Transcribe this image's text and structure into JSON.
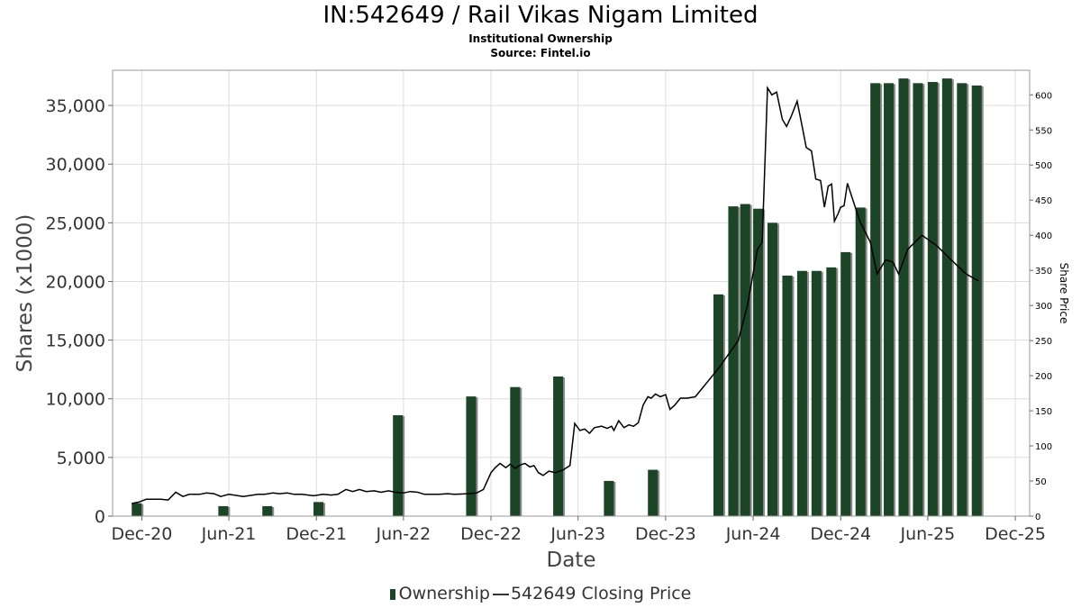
{
  "header": {
    "title": "IN:542649 / Rail Vikas Nigam Limited",
    "subtitle": "Institutional Ownership",
    "source": "Source: Fintel.io"
  },
  "legend": {
    "ownership": "Ownership",
    "price": "542649 Closing Price"
  },
  "colors": {
    "bar": "#1b4526",
    "bar_shadow": "#8c8c8c",
    "line": "#000000",
    "grid": "#dddddd"
  },
  "chart_data": {
    "type": "bar",
    "xlabel": "Date",
    "ylabel": "Shares (x1000)",
    "y2label": "Share Price",
    "ylim": [
      0,
      38000
    ],
    "y2lim": [
      0,
      635
    ],
    "grid": true,
    "legend_position": "bottom",
    "x_range": [
      "2020-10-01",
      "2025-12-31"
    ],
    "x_ticks": [
      {
        "date": "2020-12-01",
        "label": "Dec-20"
      },
      {
        "date": "2021-06-01",
        "label": "Jun-21"
      },
      {
        "date": "2021-12-01",
        "label": "Dec-21"
      },
      {
        "date": "2022-06-01",
        "label": "Jun-22"
      },
      {
        "date": "2022-12-01",
        "label": "Dec-22"
      },
      {
        "date": "2023-06-01",
        "label": "Jun-23"
      },
      {
        "date": "2023-12-01",
        "label": "Dec-23"
      },
      {
        "date": "2024-06-01",
        "label": "Jun-24"
      },
      {
        "date": "2024-12-01",
        "label": "Dec-24"
      },
      {
        "date": "2025-06-01",
        "label": "Jun-25"
      },
      {
        "date": "2025-12-01",
        "label": "Dec-25"
      }
    ],
    "y_ticks": [
      {
        "value": 0,
        "label": "0"
      },
      {
        "value": 5000,
        "label": "5,000"
      },
      {
        "value": 10000,
        "label": "10,000"
      },
      {
        "value": 15000,
        "label": "15,000"
      },
      {
        "value": 20000,
        "label": "20,000"
      },
      {
        "value": 25000,
        "label": "25,000"
      },
      {
        "value": 30000,
        "label": "30,000"
      },
      {
        "value": 35000,
        "label": "35,000"
      }
    ],
    "y2_ticks": [
      {
        "value": 0,
        "label": "0"
      },
      {
        "value": 50,
        "label": "50"
      },
      {
        "value": 100,
        "label": "100"
      },
      {
        "value": 150,
        "label": "150"
      },
      {
        "value": 200,
        "label": "200"
      },
      {
        "value": 250,
        "label": "250"
      },
      {
        "value": 300,
        "label": "300"
      },
      {
        "value": 350,
        "label": "350"
      },
      {
        "value": 400,
        "label": "400"
      },
      {
        "value": 450,
        "label": "450"
      },
      {
        "value": 500,
        "label": "500"
      },
      {
        "value": 550,
        "label": "550"
      },
      {
        "value": 600,
        "label": "600"
      }
    ],
    "series": [
      {
        "name": "Ownership",
        "kind": "bar",
        "points": [
          {
            "x": "2020-11-10",
            "y": 1100
          },
          {
            "x": "2021-05-10",
            "y": 850
          },
          {
            "x": "2021-08-10",
            "y": 850
          },
          {
            "x": "2021-11-25",
            "y": 1200
          },
          {
            "x": "2022-05-10",
            "y": 8600
          },
          {
            "x": "2022-10-10",
            "y": 10200
          },
          {
            "x": "2023-01-10",
            "y": 11000
          },
          {
            "x": "2023-04-10",
            "y": 11900
          },
          {
            "x": "2023-07-25",
            "y": 3000
          },
          {
            "x": "2023-10-25",
            "y": 3950
          },
          {
            "x": "2024-03-10",
            "y": 18900
          },
          {
            "x": "2024-04-10",
            "y": 26400
          },
          {
            "x": "2024-05-05",
            "y": 26600
          },
          {
            "x": "2024-06-01",
            "y": 26200
          },
          {
            "x": "2024-07-01",
            "y": 25000
          },
          {
            "x": "2024-08-01",
            "y": 20500
          },
          {
            "x": "2024-09-01",
            "y": 20900
          },
          {
            "x": "2024-10-01",
            "y": 20900
          },
          {
            "x": "2024-11-01",
            "y": 21200
          },
          {
            "x": "2024-12-01",
            "y": 22500
          },
          {
            "x": "2025-01-01",
            "y": 26300
          },
          {
            "x": "2025-02-01",
            "y": 36900
          },
          {
            "x": "2025-03-01",
            "y": 36900
          },
          {
            "x": "2025-04-01",
            "y": 37300
          },
          {
            "x": "2025-05-01",
            "y": 36900
          },
          {
            "x": "2025-06-01",
            "y": 37000
          },
          {
            "x": "2025-07-01",
            "y": 37300
          },
          {
            "x": "2025-08-01",
            "y": 36900
          },
          {
            "x": "2025-09-01",
            "y": 36700
          }
        ]
      },
      {
        "name": "542649 Closing Price",
        "kind": "line",
        "points": [
          {
            "x": "2020-11-10",
            "y": 18
          },
          {
            "x": "2020-11-25",
            "y": 20
          },
          {
            "x": "2020-12-10",
            "y": 24
          },
          {
            "x": "2021-01-10",
            "y": 24
          },
          {
            "x": "2021-01-25",
            "y": 23
          },
          {
            "x": "2021-02-10",
            "y": 34
          },
          {
            "x": "2021-02-25",
            "y": 28
          },
          {
            "x": "2021-03-10",
            "y": 31
          },
          {
            "x": "2021-04-01",
            "y": 31
          },
          {
            "x": "2021-04-15",
            "y": 33
          },
          {
            "x": "2021-05-01",
            "y": 32
          },
          {
            "x": "2021-05-15",
            "y": 28
          },
          {
            "x": "2021-06-01",
            "y": 31
          },
          {
            "x": "2021-07-01",
            "y": 28
          },
          {
            "x": "2021-08-01",
            "y": 31
          },
          {
            "x": "2021-08-15",
            "y": 31
          },
          {
            "x": "2021-09-01",
            "y": 33
          },
          {
            "x": "2021-09-15",
            "y": 32
          },
          {
            "x": "2021-10-01",
            "y": 33
          },
          {
            "x": "2021-10-15",
            "y": 31
          },
          {
            "x": "2021-11-01",
            "y": 31
          },
          {
            "x": "2021-11-25",
            "y": 29
          },
          {
            "x": "2021-12-15",
            "y": 31
          },
          {
            "x": "2022-01-01",
            "y": 30
          },
          {
            "x": "2022-01-15",
            "y": 31
          },
          {
            "x": "2022-02-01",
            "y": 38
          },
          {
            "x": "2022-02-15",
            "y": 35
          },
          {
            "x": "2022-03-01",
            "y": 38
          },
          {
            "x": "2022-03-15",
            "y": 35
          },
          {
            "x": "2022-04-01",
            "y": 36
          },
          {
            "x": "2022-04-15",
            "y": 34
          },
          {
            "x": "2022-05-01",
            "y": 36
          },
          {
            "x": "2022-05-15",
            "y": 34
          },
          {
            "x": "2022-06-01",
            "y": 33
          },
          {
            "x": "2022-06-15",
            "y": 35
          },
          {
            "x": "2022-07-01",
            "y": 34
          },
          {
            "x": "2022-07-15",
            "y": 31
          },
          {
            "x": "2022-08-15",
            "y": 31
          },
          {
            "x": "2022-09-01",
            "y": 32
          },
          {
            "x": "2022-09-15",
            "y": 31
          },
          {
            "x": "2022-10-15",
            "y": 32
          },
          {
            "x": "2022-11-01",
            "y": 33
          },
          {
            "x": "2022-11-15",
            "y": 38
          },
          {
            "x": "2022-12-01",
            "y": 62
          },
          {
            "x": "2022-12-10",
            "y": 69
          },
          {
            "x": "2022-12-20",
            "y": 75
          },
          {
            "x": "2023-01-01",
            "y": 69
          },
          {
            "x": "2023-01-10",
            "y": 74
          },
          {
            "x": "2023-01-20",
            "y": 68
          },
          {
            "x": "2023-02-01",
            "y": 73
          },
          {
            "x": "2023-02-10",
            "y": 75
          },
          {
            "x": "2023-02-20",
            "y": 70
          },
          {
            "x": "2023-03-01",
            "y": 72
          },
          {
            "x": "2023-03-10",
            "y": 62
          },
          {
            "x": "2023-03-20",
            "y": 58
          },
          {
            "x": "2023-04-01",
            "y": 64
          },
          {
            "x": "2023-04-15",
            "y": 62
          },
          {
            "x": "2023-05-01",
            "y": 66
          },
          {
            "x": "2023-05-15",
            "y": 72
          },
          {
            "x": "2023-05-25",
            "y": 132
          },
          {
            "x": "2023-06-05",
            "y": 122
          },
          {
            "x": "2023-06-15",
            "y": 124
          },
          {
            "x": "2023-06-25",
            "y": 118
          },
          {
            "x": "2023-07-05",
            "y": 126
          },
          {
            "x": "2023-07-20",
            "y": 128
          },
          {
            "x": "2023-08-01",
            "y": 125
          },
          {
            "x": "2023-08-10",
            "y": 128
          },
          {
            "x": "2023-08-15",
            "y": 122
          },
          {
            "x": "2023-08-25",
            "y": 136
          },
          {
            "x": "2023-09-05",
            "y": 126
          },
          {
            "x": "2023-09-15",
            "y": 130
          },
          {
            "x": "2023-09-25",
            "y": 128
          },
          {
            "x": "2023-10-05",
            "y": 133
          },
          {
            "x": "2023-10-15",
            "y": 158
          },
          {
            "x": "2023-10-25",
            "y": 170
          },
          {
            "x": "2023-11-01",
            "y": 168
          },
          {
            "x": "2023-11-10",
            "y": 174
          },
          {
            "x": "2023-11-20",
            "y": 170
          },
          {
            "x": "2023-12-01",
            "y": 173
          },
          {
            "x": "2023-12-10",
            "y": 152
          },
          {
            "x": "2023-12-20",
            "y": 158
          },
          {
            "x": "2024-01-01",
            "y": 168
          },
          {
            "x": "2024-01-15",
            "y": 168
          },
          {
            "x": "2024-02-01",
            "y": 170
          },
          {
            "x": "2024-03-20",
            "y": 210
          },
          {
            "x": "2024-05-01",
            "y": 250
          },
          {
            "x": "2024-05-20",
            "y": 300
          },
          {
            "x": "2024-06-10",
            "y": 380
          },
          {
            "x": "2024-06-20",
            "y": 390
          },
          {
            "x": "2024-07-01",
            "y": 610
          },
          {
            "x": "2024-07-10",
            "y": 600
          },
          {
            "x": "2024-07-20",
            "y": 604
          },
          {
            "x": "2024-08-01",
            "y": 565
          },
          {
            "x": "2024-08-10",
            "y": 555
          },
          {
            "x": "2024-08-20",
            "y": 570
          },
          {
            "x": "2024-09-01",
            "y": 591
          },
          {
            "x": "2024-09-10",
            "y": 560
          },
          {
            "x": "2024-09-20",
            "y": 525
          },
          {
            "x": "2024-10-01",
            "y": 520
          },
          {
            "x": "2024-10-10",
            "y": 480
          },
          {
            "x": "2024-10-20",
            "y": 478
          },
          {
            "x": "2024-10-28",
            "y": 440
          },
          {
            "x": "2024-11-05",
            "y": 470
          },
          {
            "x": "2024-11-12",
            "y": 473
          },
          {
            "x": "2024-11-18",
            "y": 420
          },
          {
            "x": "2024-11-25",
            "y": 430
          },
          {
            "x": "2024-12-01",
            "y": 440
          },
          {
            "x": "2024-12-08",
            "y": 442
          },
          {
            "x": "2024-12-15",
            "y": 474
          },
          {
            "x": "2025-01-10",
            "y": 420
          },
          {
            "x": "2025-02-01",
            "y": 390
          },
          {
            "x": "2025-02-15",
            "y": 345
          },
          {
            "x": "2025-03-05",
            "y": 365
          },
          {
            "x": "2025-03-20",
            "y": 362
          },
          {
            "x": "2025-04-01",
            "y": 345
          },
          {
            "x": "2025-04-20",
            "y": 380
          },
          {
            "x": "2025-05-20",
            "y": 400
          },
          {
            "x": "2025-06-20",
            "y": 385
          },
          {
            "x": "2025-07-20",
            "y": 365
          },
          {
            "x": "2025-08-20",
            "y": 345
          },
          {
            "x": "2025-09-15",
            "y": 335
          }
        ]
      }
    ]
  }
}
